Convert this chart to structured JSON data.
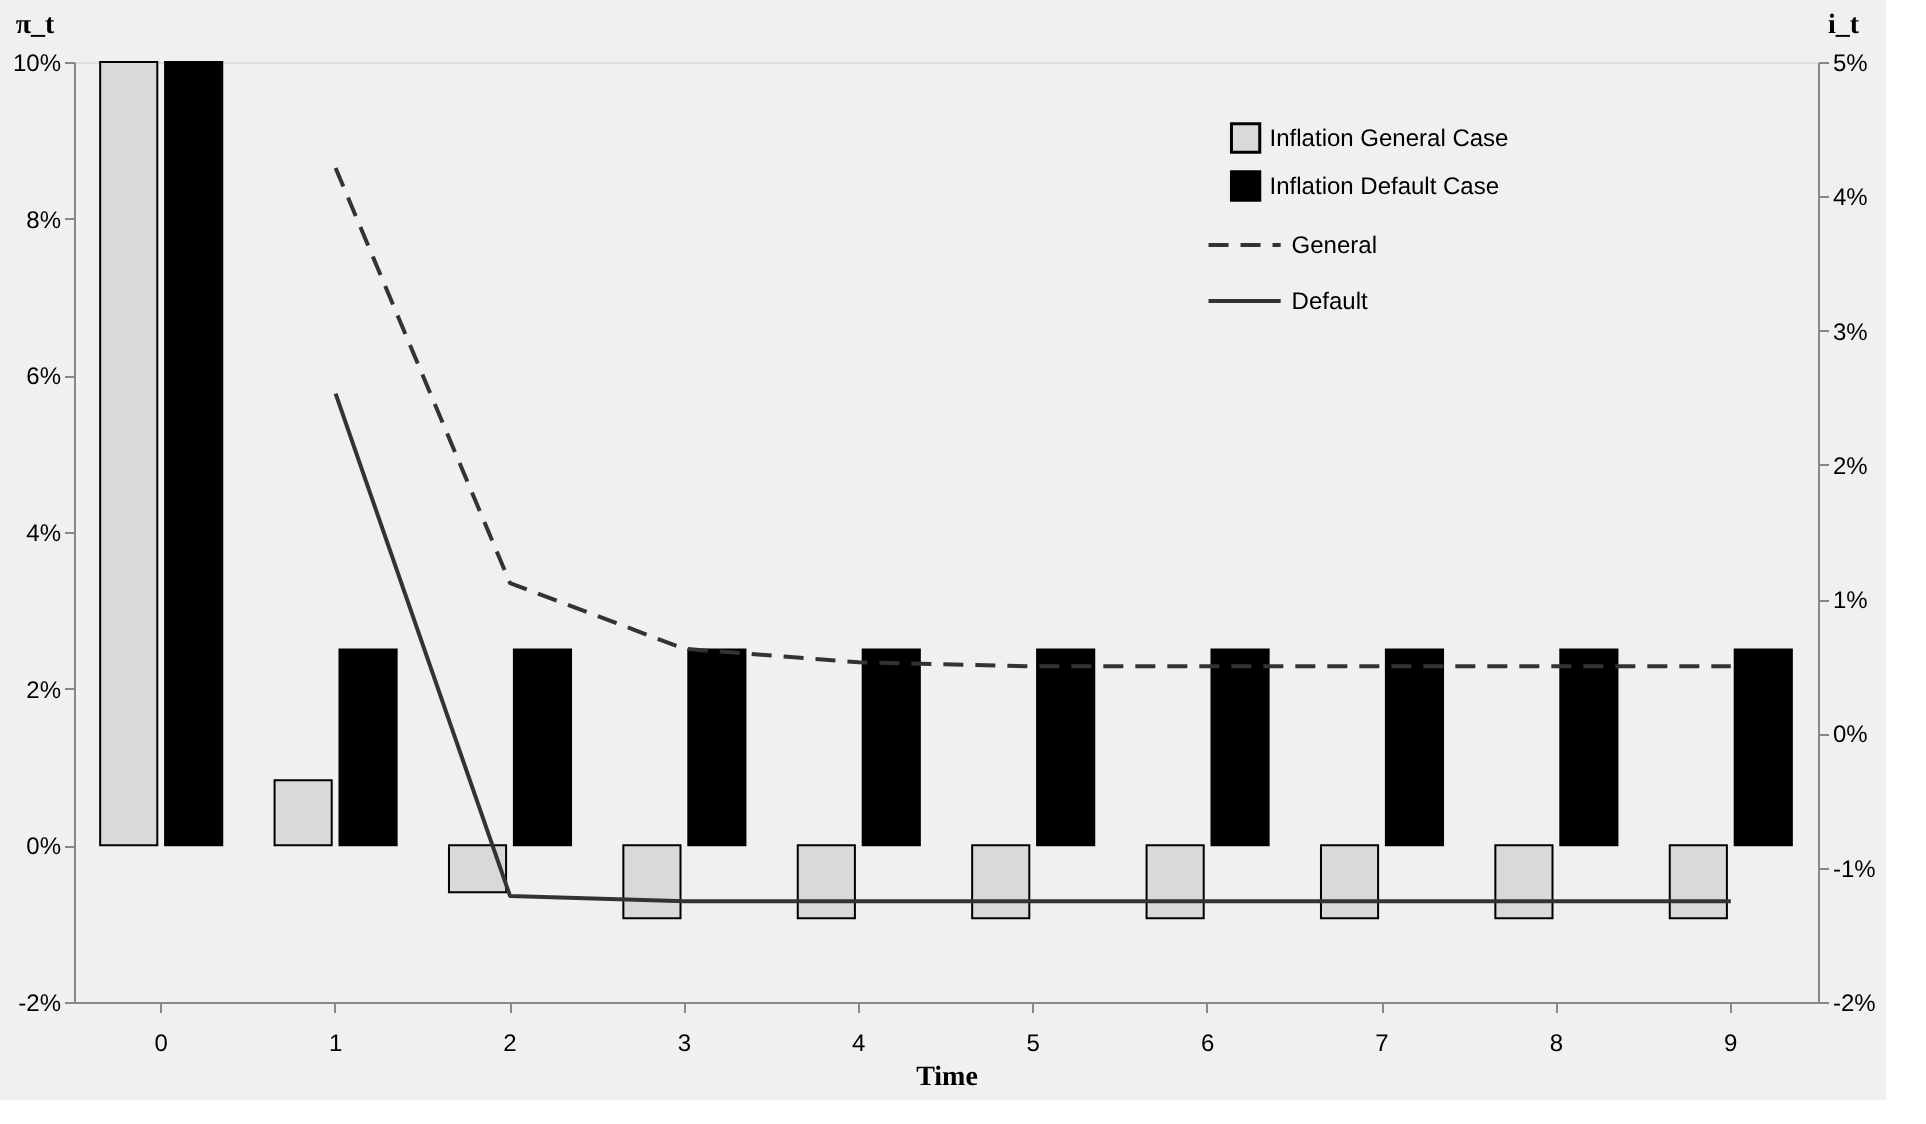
{
  "chart_data": {
    "type": "bar",
    "categories": [
      "0",
      "1",
      "2",
      "3",
      "4",
      "5",
      "6",
      "7",
      "8",
      "9"
    ],
    "xlabel": "Time",
    "ylabel": "π_t",
    "y2label": "i_t",
    "series": [
      {
        "name": "Inflation General Case",
        "color": "#d9d9d9",
        "values": [
          10,
          0.83,
          -0.6,
          -0.93,
          -0.93,
          -0.93,
          -0.93,
          -0.93,
          -0.93,
          -0.93
        ]
      },
      {
        "name": "Inflation Default Case",
        "color": "#000000",
        "values": [
          10,
          2.5,
          2.5,
          2.5,
          2.5,
          2.5,
          2.5,
          2.5,
          2.5,
          2.5
        ]
      },
      {
        "name": "General",
        "type": "line",
        "axis": "y2",
        "line_style": "dashed",
        "color": "#333333",
        "values": [
          null,
          4.21,
          1.12,
          0.63,
          0.53,
          0.5,
          0.5,
          0.5,
          0.5,
          0.5
        ]
      },
      {
        "name": "Default",
        "type": "line",
        "axis": "y2",
        "line_style": "solid",
        "color": "#333333",
        "values": [
          null,
          2.53,
          -1.21,
          -1.25,
          -1.25,
          -1.25,
          -1.25,
          -1.25,
          -1.25,
          -1.25
        ]
      }
    ],
    "ylim": [
      -2,
      10
    ],
    "yticks": [
      {
        "value": -2,
        "label": "-2%"
      },
      {
        "value": 0,
        "label": "0%"
      },
      {
        "value": 2,
        "label": "2%"
      },
      {
        "value": 4,
        "label": "4%"
      },
      {
        "value": 6,
        "label": "6%"
      },
      {
        "value": 8,
        "label": "8%"
      },
      {
        "value": 10,
        "label": "10%"
      }
    ],
    "y2lim": [
      -2,
      5
    ],
    "y2ticks": [
      {
        "value": -2,
        "label": "-2%"
      },
      {
        "value": -1,
        "label": "-1%"
      },
      {
        "value": 0,
        "label": "0%"
      },
      {
        "value": 1,
        "label": "1%"
      },
      {
        "value": 2,
        "label": "2%"
      },
      {
        "value": 3,
        "label": "3%"
      },
      {
        "value": 4,
        "label": "4%"
      },
      {
        "value": 5,
        "label": "5%"
      }
    ],
    "legend": "top right",
    "grid": false
  }
}
